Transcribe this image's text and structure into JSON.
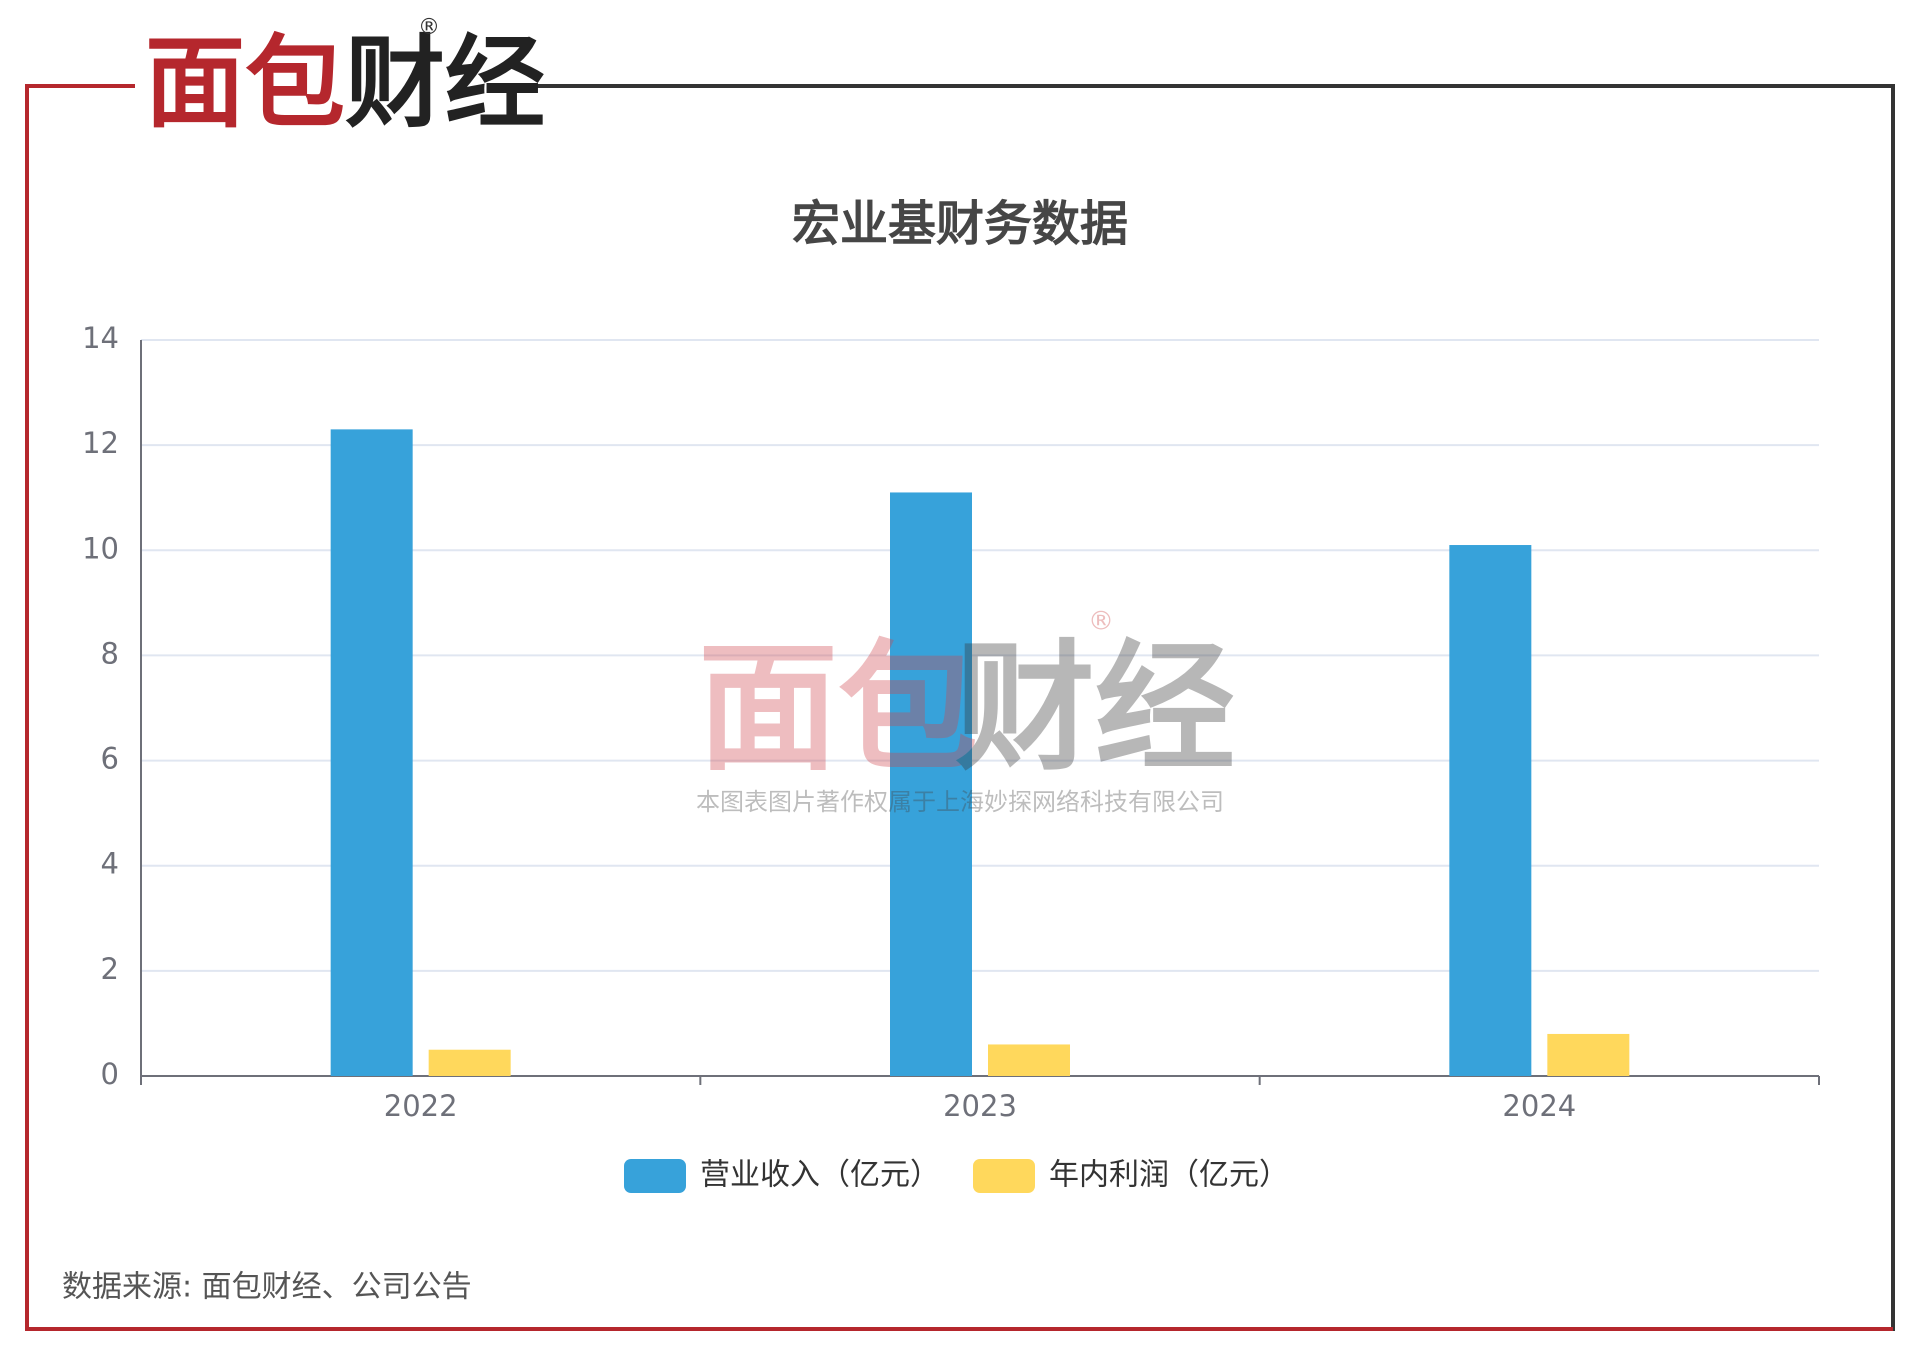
{
  "logo": {
    "part1": "面包",
    "part2": "财经",
    "mark": "®"
  },
  "watermark": {
    "part1": "面包",
    "part2": "财经",
    "mark": "®",
    "notice": "本图表图片著作权属于上海妙探网络科技有限公司"
  },
  "chart_data": {
    "type": "bar",
    "title": "宏业基财务数据",
    "categories": [
      "2022",
      "2023",
      "2024"
    ],
    "series": [
      {
        "name": "营业收入（亿元）",
        "color": "#37a2da",
        "values": [
          12.3,
          11.1,
          10.1
        ]
      },
      {
        "name": "年内利润（亿元）",
        "color": "#ffd85c",
        "values": [
          0.5,
          0.6,
          0.8
        ]
      }
    ],
    "ylim": [
      0,
      14
    ],
    "yticks": [
      0,
      2,
      4,
      6,
      8,
      10,
      12,
      14
    ],
    "grid": true,
    "legend": "bottom"
  },
  "source": "数据来源: 面包财经、公司公告"
}
